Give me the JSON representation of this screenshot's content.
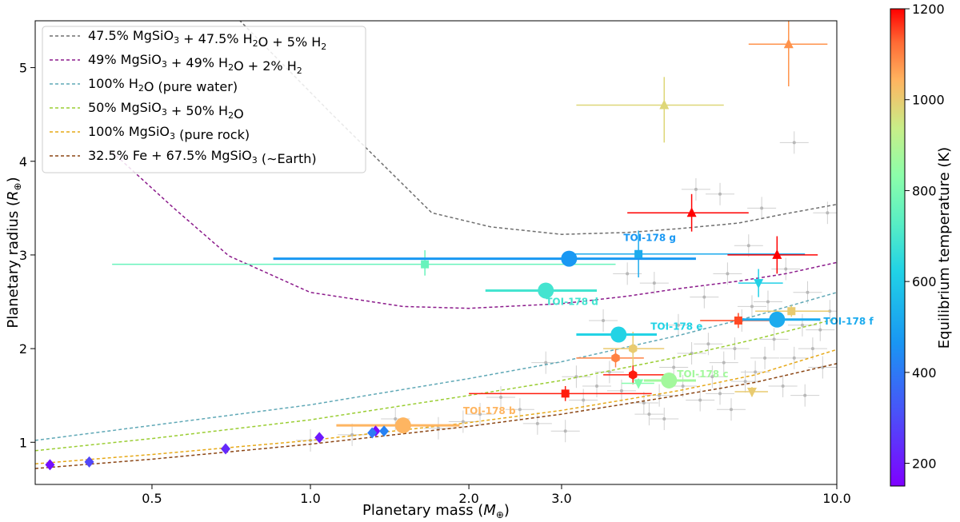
{
  "chart_data": {
    "type": "scatter",
    "title": "",
    "xlabel": "Planetary mass",
    "xlabel_unit": "M⊕",
    "ylabel": "Planetary radius",
    "ylabel_unit": "R⊕",
    "x_scale": "log",
    "xlim": [
      0.3,
      10.0
    ],
    "ylim": [
      0.55,
      5.5
    ],
    "x_ticks": [
      {
        "value": 0.5,
        "label": "0.5"
      },
      {
        "value": 1.0,
        "label": "1.0"
      },
      {
        "value": 2.0,
        "label": "2.0"
      },
      {
        "value": 3.0,
        "label": "3.0"
      },
      {
        "value": 10.0,
        "label": "10.0"
      }
    ],
    "y_ticks": [
      {
        "value": 1,
        "label": "1"
      },
      {
        "value": 2,
        "label": "2"
      },
      {
        "value": 3,
        "label": "3"
      },
      {
        "value": 4,
        "label": "4"
      },
      {
        "value": 5,
        "label": "5"
      }
    ],
    "grid": false,
    "legend_position": "top-left",
    "colorbar": {
      "label": "Equilibrium temperature (K)",
      "range": [
        150,
        1200
      ],
      "ticks": [
        {
          "value": 200,
          "label": "200"
        },
        {
          "value": 400,
          "label": "400"
        },
        {
          "value": 600,
          "label": "600"
        },
        {
          "value": 800,
          "label": "800"
        },
        {
          "value": 1000,
          "label": "1000"
        },
        {
          "value": 1200,
          "label": "1200"
        }
      ]
    },
    "composition_curves": [
      {
        "name_main": "47.5% MgSiO",
        "name_parts": [
          [
            "47.5% MgSiO",
            ""
          ],
          [
            "3",
            "sub"
          ],
          [
            " + 47.5% H",
            ""
          ],
          [
            "2",
            "sub"
          ],
          [
            "O + 5% H",
            ""
          ],
          [
            "2",
            "sub"
          ]
        ],
        "color": "#6e6e6e",
        "x": [
          0.72,
          1.1,
          1.7,
          2.2,
          3.0,
          4.0,
          5.0,
          6.5,
          8.0,
          10.0
        ],
        "y": [
          5.55,
          4.5,
          3.45,
          3.3,
          3.22,
          3.24,
          3.28,
          3.34,
          3.44,
          3.54
        ]
      },
      {
        "name_main": "49% MgSiO",
        "name_parts": [
          [
            "49% MgSiO",
            ""
          ],
          [
            "3",
            "sub"
          ],
          [
            " + 49% H",
            ""
          ],
          [
            "2",
            "sub"
          ],
          [
            "O + 2% H",
            ""
          ],
          [
            "2",
            "sub"
          ]
        ],
        "color": "#8b1a8b",
        "x": [
          0.42,
          0.55,
          0.7,
          1.0,
          1.5,
          2.0,
          3.0,
          4.0,
          5.0,
          6.5,
          8.0,
          10.0
        ],
        "y": [
          4.1,
          3.5,
          2.99,
          2.6,
          2.45,
          2.43,
          2.48,
          2.56,
          2.64,
          2.72,
          2.8,
          2.92
        ]
      },
      {
        "name_main": "100% H",
        "name_parts": [
          [
            "100% H",
            ""
          ],
          [
            "2",
            "sub"
          ],
          [
            "O (pure water)",
            ""
          ]
        ],
        "color": "#5fa8b6",
        "x": [
          0.3,
          0.5,
          1.0,
          2.0,
          3.0,
          5.0,
          7.0,
          10.0
        ],
        "y": [
          1.02,
          1.18,
          1.4,
          1.68,
          1.86,
          2.14,
          2.35,
          2.6
        ]
      },
      {
        "name_main": "50% MgSiO",
        "name_parts": [
          [
            "50% MgSiO",
            ""
          ],
          [
            "3",
            "sub"
          ],
          [
            " + 50% H",
            ""
          ],
          [
            "2",
            "sub"
          ],
          [
            "O",
            ""
          ]
        ],
        "color": "#9acd32",
        "x": [
          0.3,
          0.5,
          1.0,
          2.0,
          3.0,
          5.0,
          7.0,
          10.0
        ],
        "y": [
          0.91,
          1.04,
          1.24,
          1.5,
          1.66,
          1.91,
          2.1,
          2.32
        ]
      },
      {
        "name_main": "100% MgSiO",
        "name_parts": [
          [
            "100% MgSiO",
            ""
          ],
          [
            "3",
            "sub"
          ],
          [
            " (pure rock)",
            ""
          ]
        ],
        "color": "#e6a817",
        "x": [
          0.3,
          0.5,
          1.0,
          2.0,
          3.0,
          5.0,
          7.0,
          10.0
        ],
        "y": [
          0.77,
          0.87,
          1.02,
          1.21,
          1.34,
          1.55,
          1.72,
          1.99
        ]
      },
      {
        "name_main": "32.5% Fe + 67.5% MgSiO",
        "name_parts": [
          [
            "32.5% Fe + 67.5% MgSiO",
            ""
          ],
          [
            "3",
            "sub"
          ],
          [
            " (∼Earth)",
            ""
          ]
        ],
        "color": "#8b4513",
        "x": [
          0.3,
          0.5,
          1.0,
          2.0,
          3.0,
          5.0,
          7.0,
          10.0
        ],
        "y": [
          0.72,
          0.82,
          0.98,
          1.17,
          1.3,
          1.5,
          1.64,
          1.84
        ]
      }
    ],
    "toi178_planets": [
      {
        "label": "TOI-178 b",
        "mass": 1.5,
        "mass_err": [
          0.38,
          0.42
        ],
        "radius": 1.18,
        "radius_err": [
          0.02,
          0.02
        ],
        "teq": 1040,
        "label_dx": 1.5,
        "label_dy": -14
      },
      {
        "label": "TOI-178 c",
        "mass": 4.8,
        "mass_err": [
          0.5,
          0.6
        ],
        "radius": 1.66,
        "radius_err": [
          0.04,
          0.05
        ],
        "teq": 873,
        "label_dx": 10,
        "label_dy": -4
      },
      {
        "label": "TOI-178 d",
        "mass": 2.8,
        "mass_err": [
          0.65,
          0.7
        ],
        "radius": 2.62,
        "radius_err": [
          0.04,
          0.04
        ],
        "teq": 690,
        "label_dx": -100,
        "label_dy": 18
      },
      {
        "label": "TOI-178 e",
        "mass": 3.85,
        "mass_err": [
          0.65,
          0.7
        ],
        "radius": 2.15,
        "radius_err": [
          0.05,
          0.05
        ],
        "teq": 626,
        "label_dx": 40,
        "label_dy": -6
      },
      {
        "label": "TOI-178 f",
        "mass": 7.7,
        "mass_err": [
          1.1,
          1.6
        ],
        "radius": 2.31,
        "radius_err": [
          0.05,
          0.05
        ],
        "teq": 521,
        "label_dx": 58,
        "label_dy": 6
      },
      {
        "label": "TOI-178 g",
        "mass": 3.1,
        "mass_err": [
          2.25,
          2.3
        ],
        "radius": 2.96,
        "radius_err": [
          0.07,
          0.07
        ],
        "teq": 470,
        "label_dx": 68,
        "label_dy": -22
      }
    ],
    "colored_points": [
      {
        "shape": "diamond",
        "mass": 0.32,
        "radius": 0.76,
        "teq": 180
      },
      {
        "shape": "diamond",
        "mass": 0.38,
        "radius": 0.79,
        "teq": 290
      },
      {
        "shape": "diamond",
        "mass": 0.69,
        "radius": 0.93,
        "teq": 230
      },
      {
        "shape": "diamond",
        "mass": 1.04,
        "radius": 1.05,
        "teq": 200
      },
      {
        "shape": "diamond",
        "mass": 1.33,
        "radius": 1.12,
        "teq": 175
      },
      {
        "shape": "diamond",
        "mass": 1.31,
        "radius": 1.1,
        "teq": 400
      },
      {
        "shape": "diamond",
        "mass": 1.38,
        "radius": 1.12,
        "teq": 420
      },
      {
        "shape": "square",
        "mass": 1.65,
        "radius": 2.9,
        "teq": 760,
        "xerr": [
          1.23,
          2.15
        ],
        "yerr": [
          0.12,
          0.15
        ]
      },
      {
        "shape": "square",
        "mass": 3.05,
        "radius": 1.52,
        "teq": 1180,
        "xerr": [
          1.05,
          1.4
        ],
        "yerr": [
          0.08,
          0.08
        ]
      },
      {
        "shape": "square",
        "mass": 4.2,
        "radius": 3.01,
        "teq": 520,
        "xerr": [
          1.1,
          4.5
        ],
        "yerr": [
          0.25,
          0.25
        ]
      },
      {
        "shape": "square",
        "mass": 6.5,
        "radius": 2.3,
        "teq": 1150,
        "xerr": [
          1.0,
          1.3
        ],
        "yerr": [
          0.08,
          0.08
        ]
      },
      {
        "shape": "square",
        "mass": 8.2,
        "radius": 2.4,
        "teq": 1000,
        "xerr": [
          1.2,
          1.5
        ],
        "yerr": [
          0.06,
          0.06
        ]
      },
      {
        "shape": "hexagon",
        "mass": 3.8,
        "radius": 1.9,
        "teq": 1100,
        "xerr": [
          0.6,
          0.5
        ],
        "yerr": [
          0.1,
          0.1
        ]
      },
      {
        "shape": "hexagon",
        "mass": 4.1,
        "radius": 2.0,
        "teq": 1000,
        "xerr": [
          0.5,
          0.6
        ],
        "yerr": [
          0.18,
          0.18
        ]
      },
      {
        "shape": "hexagon",
        "mass": 4.1,
        "radius": 1.72,
        "teq": 1180,
        "xerr": [
          0.5,
          0.7
        ],
        "yerr": [
          0.1,
          0.1
        ]
      },
      {
        "shape": "triangle-up",
        "mass": 5.3,
        "radius": 3.45,
        "teq": 1200,
        "xerr": [
          1.3,
          1.5
        ],
        "yerr": [
          0.2,
          0.2
        ]
      },
      {
        "shape": "triangle-up",
        "mass": 7.7,
        "radius": 3.0,
        "teq": 1200,
        "xerr": [
          1.5,
          1.5
        ],
        "yerr": [
          0.2,
          0.2
        ]
      },
      {
        "shape": "triangle-up",
        "mass": 4.7,
        "radius": 4.6,
        "teq": 980,
        "xerr": [
          1.5,
          1.4
        ],
        "yerr": [
          0.4,
          0.3
        ]
      },
      {
        "shape": "triangle-up",
        "mass": 8.1,
        "radius": 5.25,
        "teq": 1080,
        "xerr": [
          1.3,
          1.5
        ],
        "yerr": [
          0.45,
          0.35
        ]
      },
      {
        "shape": "triangle-down",
        "mass": 7.1,
        "radius": 2.7,
        "teq": 620,
        "xerr": [
          0.6,
          0.8
        ],
        "yerr": [
          0.15,
          0.15
        ]
      },
      {
        "shape": "triangle-down",
        "mass": 6.9,
        "radius": 1.54,
        "teq": 1000,
        "xerr": [
          0.5,
          0.5
        ],
        "yerr": [
          0.05,
          0.05
        ]
      },
      {
        "shape": "triangle-down",
        "mass": 4.2,
        "radius": 1.63,
        "teq": 820,
        "xerr": [
          0.3,
          0.3
        ],
        "yerr": [
          0.05,
          0.05
        ]
      }
    ],
    "background_points": [
      [
        1.95,
        1.22
      ],
      [
        2.1,
        1.3
      ],
      [
        2.3,
        1.48
      ],
      [
        2.5,
        1.35
      ],
      [
        2.7,
        1.2
      ],
      [
        3.05,
        1.12
      ],
      [
        3.3,
        1.45
      ],
      [
        3.5,
        1.6
      ],
      [
        3.7,
        1.75
      ],
      [
        3.9,
        1.55
      ],
      [
        4.3,
        1.42
      ],
      [
        4.4,
        1.3
      ],
      [
        4.6,
        1.5
      ],
      [
        4.9,
        1.8
      ],
      [
        5.1,
        1.6
      ],
      [
        5.3,
        1.95
      ],
      [
        5.5,
        1.45
      ],
      [
        5.8,
        1.7
      ],
      [
        6.0,
        1.52
      ],
      [
        6.1,
        1.85
      ],
      [
        6.4,
        2.0
      ],
      [
        6.7,
        1.65
      ],
      [
        7.0,
        1.75
      ],
      [
        7.3,
        1.9
      ],
      [
        7.6,
        2.1
      ],
      [
        7.9,
        1.6
      ],
      [
        8.3,
        1.9
      ],
      [
        8.6,
        2.25
      ],
      [
        9.0,
        2.0
      ],
      [
        9.4,
        1.8
      ],
      [
        9.7,
        2.4
      ],
      [
        5.6,
        2.55
      ],
      [
        6.2,
        2.8
      ],
      [
        6.8,
        3.1
      ],
      [
        7.2,
        3.5
      ],
      [
        5.4,
        3.7
      ],
      [
        6.0,
        3.65
      ],
      [
        8.3,
        4.2
      ],
      [
        9.6,
        3.45
      ],
      [
        5.0,
        2.25
      ],
      [
        4.5,
        2.7
      ],
      [
        4.0,
        2.8
      ],
      [
        3.6,
        2.3
      ],
      [
        6.6,
        2.3
      ],
      [
        7.4,
        2.5
      ],
      [
        8.0,
        2.85
      ],
      [
        8.8,
        2.6
      ],
      [
        9.3,
        2.2
      ],
      [
        6.3,
        1.35
      ],
      [
        4.7,
        1.25
      ],
      [
        5.7,
        2.05
      ],
      [
        6.9,
        2.45
      ],
      [
        8.7,
        1.5
      ],
      [
        3.2,
        1.7
      ],
      [
        2.8,
        1.85
      ],
      [
        1.2,
        1.08
      ],
      [
        1.45,
        1.25
      ],
      [
        1.0,
        1.02
      ],
      [
        1.75,
        1.15
      ]
    ]
  }
}
